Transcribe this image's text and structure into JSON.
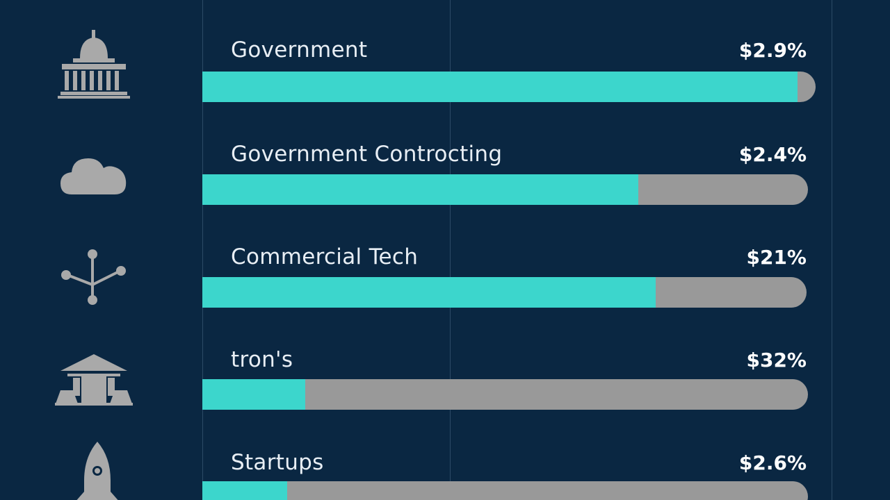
{
  "colors": {
    "background": "#0a2742",
    "bar_fill": "#3cd6cc",
    "bar_track": "#999999",
    "text": "#e8eef4"
  },
  "chart_data": {
    "type": "bar",
    "orientation": "horizontal",
    "grid": true,
    "xlim": [
      0,
      1
    ],
    "categories": [
      "Government",
      "Government Controcting",
      "Commercial Tech",
      "tron's",
      "Startups"
    ],
    "value_labels": [
      "$2.9%",
      "$2.4%",
      "$21%",
      "$32%",
      "$2.6%"
    ],
    "values": [
      0.97,
      0.72,
      0.75,
      0.17,
      0.14
    ],
    "icons": [
      "capitol-dome-icon",
      "cloud-icon",
      "network-node-icon",
      "pavilion-icon",
      "rocket-icon"
    ]
  }
}
